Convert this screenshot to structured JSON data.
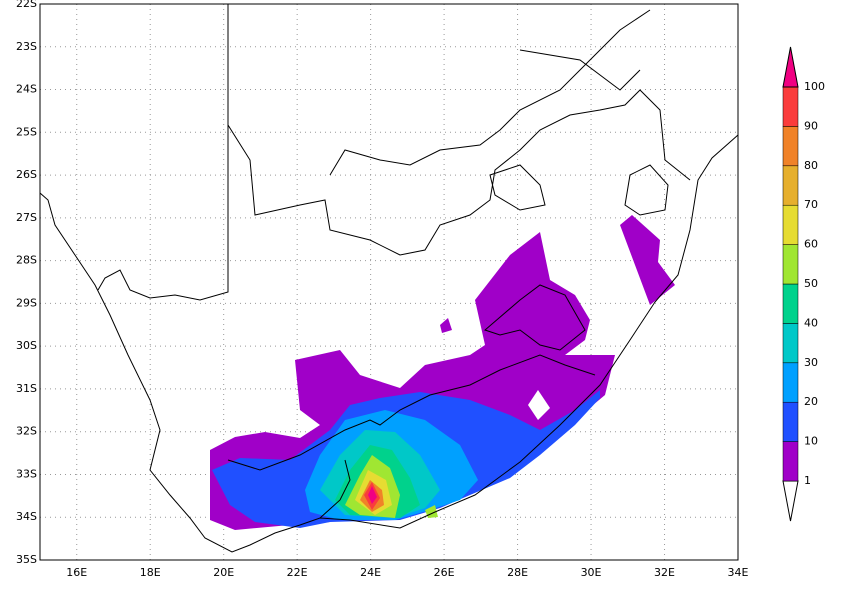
{
  "map": {
    "lon_labels": [
      "16E",
      "18E",
      "20E",
      "22E",
      "24E",
      "26E",
      "28E",
      "30E",
      "32E",
      "34E"
    ],
    "lat_labels": [
      "22S",
      "23S",
      "24S",
      "25S",
      "26S",
      "27S",
      "28S",
      "29S",
      "30S",
      "31S",
      "32S",
      "33S",
      "34S",
      "35S"
    ]
  },
  "colorbar": {
    "labels": [
      "1",
      "10",
      "20",
      "30",
      "40",
      "50",
      "60",
      "70",
      "80",
      "90",
      "100"
    ]
  }
}
